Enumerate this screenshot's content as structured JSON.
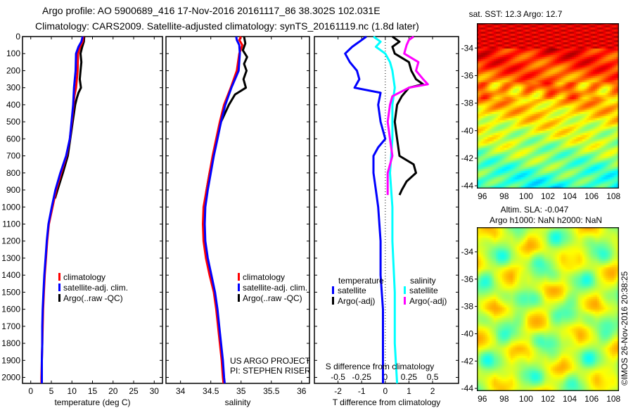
{
  "title": {
    "line1": "Argo profile: AO 5900689_416 17-Nov-2016 20161117_86 38.302S 102.031E",
    "line2": "Climatology: CARS2009. Satellite-adjusted climatology: synTS_20161119.nc (1.8d later)"
  },
  "colors": {
    "climatology": "#ff0000",
    "satellite": "#0000ff",
    "argo": "#000000",
    "salinity_satellite": "#00ffff",
    "salinity_argo": "#ff00ff"
  },
  "project": {
    "line1": "US ARGO PROJECT",
    "line2": "PI: STEPHEN RISER"
  },
  "copyright": "©IMOS 26-Nov-2016 20:38:25",
  "chart_data": [
    {
      "type": "line",
      "title": "",
      "xlabel": "temperature (deg C)",
      "ylabel": "",
      "xlim": [
        -2,
        32
      ],
      "ylim": [
        2035,
        0
      ],
      "xticks": [
        "0",
        "5",
        "10",
        "15",
        "20",
        "25",
        "30"
      ],
      "yticks": [
        "0",
        "100",
        "200",
        "300",
        "400",
        "500",
        "600",
        "700",
        "800",
        "900",
        "1000",
        "1100",
        "1200",
        "1300",
        "1400",
        "1500",
        "1600",
        "1700",
        "1800",
        "1900",
        "2000"
      ],
      "legend": [
        "climatology",
        "satellite-adj. clim.",
        "Argo(..raw -QC)"
      ],
      "legend_placement": "lower-center",
      "series": [
        {
          "name": "climatology",
          "depth": [
            0,
            30,
            60,
            100,
            200,
            300,
            350,
            400,
            500,
            600,
            700,
            800,
            900,
            1000,
            1100,
            1200,
            1300,
            1400,
            1500,
            1600,
            1700,
            1800,
            1900,
            2000,
            2035
          ],
          "values": [
            12.8,
            12.6,
            12.0,
            11.5,
            11.4,
            11.0,
            10.6,
            10.4,
            10.0,
            9.5,
            8.7,
            7.4,
            6.2,
            5.3,
            4.4,
            4.0,
            3.7,
            3.4,
            3.2,
            3.0,
            2.9,
            2.8,
            2.7,
            2.6,
            2.6
          ]
        },
        {
          "name": "satellite-adj. clim.",
          "depth": [
            0,
            30,
            60,
            100,
            200,
            300,
            350,
            400,
            500,
            600,
            700,
            800,
            900,
            1000,
            1100,
            1200,
            1300,
            1400,
            1500,
            1600,
            1700,
            1800,
            1900,
            2000,
            2035
          ],
          "values": [
            12.6,
            12.3,
            11.6,
            11.0,
            10.9,
            10.5,
            10.4,
            10.3,
            9.9,
            9.5,
            8.6,
            7.2,
            6.0,
            5.1,
            4.3,
            3.9,
            3.6,
            3.3,
            3.1,
            2.9,
            2.8,
            2.8,
            2.7,
            2.7,
            2.7
          ]
        },
        {
          "name": "Argo(..raw -QC)",
          "depth": [
            0,
            30,
            60,
            100,
            150,
            200,
            250,
            300,
            330,
            360,
            400,
            500,
            600,
            700,
            800,
            900,
            950
          ],
          "values": [
            13.0,
            12.9,
            12.5,
            12.1,
            12.3,
            12.1,
            11.9,
            12.2,
            11.6,
            11.2,
            10.8,
            10.2,
            9.6,
            9.0,
            7.8,
            6.5,
            5.9
          ]
        }
      ]
    },
    {
      "type": "line",
      "xlabel": "salinity",
      "xlim": [
        33.76,
        36.13
      ],
      "ylim": [
        2035,
        0
      ],
      "xticks": [
        "34",
        "34.5",
        "35",
        "35.5",
        "36"
      ],
      "legend": [
        "climatology",
        "satellite-adj. clim.",
        "Argo(..raw -QC)"
      ],
      "legend_placement": "lower-right",
      "series": [
        {
          "name": "climatology",
          "depth": [
            0,
            20,
            50,
            100,
            200,
            300,
            400,
            500,
            600,
            700,
            800,
            900,
            1000,
            1100,
            1200,
            1300,
            1400,
            1500,
            1600,
            1700,
            1800,
            1900,
            2000,
            2035
          ],
          "values": [
            35.0,
            34.97,
            35.02,
            34.97,
            34.93,
            34.83,
            34.72,
            34.65,
            34.59,
            34.53,
            34.48,
            34.43,
            34.38,
            34.37,
            34.38,
            34.42,
            34.48,
            34.55,
            34.59,
            34.62,
            34.65,
            34.68,
            34.7,
            34.71
          ]
        },
        {
          "name": "satellite-adj. clim.",
          "depth": [
            0,
            20,
            50,
            100,
            200,
            300,
            400,
            500,
            600,
            700,
            800,
            900,
            1000,
            1100,
            1200,
            1300,
            1400,
            1500,
            1600,
            1700,
            1800,
            1900,
            2000,
            2035
          ],
          "values": [
            34.92,
            34.93,
            34.97,
            34.98,
            34.96,
            34.84,
            34.74,
            34.67,
            34.61,
            34.55,
            34.5,
            34.45,
            34.41,
            34.4,
            34.41,
            34.45,
            34.51,
            34.57,
            34.61,
            34.64,
            34.67,
            34.7,
            34.72,
            34.73
          ]
        },
        {
          "name": "Argo(..raw -QC)",
          "depth": [
            0,
            40,
            80,
            120,
            160,
            200,
            250,
            300,
            340,
            400,
            500,
            600,
            700,
            800,
            900,
            1000
          ],
          "values": [
            35.05,
            35.07,
            35.03,
            35.1,
            35.05,
            35.09,
            35.04,
            35.08,
            34.9,
            34.8,
            34.67,
            34.6,
            34.54,
            34.48,
            34.43,
            34.39
          ]
        }
      ]
    },
    {
      "type": "line",
      "xlabel": "T difference from climatology",
      "xlabel2": "S difference from climatology",
      "xlim": [
        -3,
        3.1
      ],
      "ylim": [
        2035,
        0
      ],
      "xticks": [
        "-2",
        "-1",
        "0",
        "1",
        "2"
      ],
      "xticks_s": [
        "-0.5",
        "-0.25",
        "0",
        "0.25",
        "0.5"
      ],
      "legend_headers": {
        "temperature": "temperature",
        "salinity": "salinity"
      },
      "legend": [
        "satellite",
        "Argo(-adj)",
        "satellite",
        "Argo(-adj)"
      ],
      "series": [
        {
          "name": "temperature satellite",
          "depth": [
            0,
            30,
            60,
            100,
            150,
            200,
            250,
            300,
            330,
            400,
            500,
            600,
            650,
            700,
            800,
            900,
            1000,
            1200,
            1400,
            1600,
            2035
          ],
          "values": [
            -0.8,
            -1.1,
            -1.4,
            -1.7,
            -1.5,
            -1.2,
            -1.1,
            -1.3,
            -0.2,
            -0.3,
            -0.2,
            0,
            -0.3,
            -0.5,
            -0.5,
            -0.4,
            -0.3,
            -0.2,
            -0.2,
            -0.1,
            -0.1
          ]
        },
        {
          "name": "temperature Argo(-adj)",
          "depth": [
            0,
            30,
            60,
            100,
            150,
            200,
            250,
            280,
            300,
            350,
            400,
            500,
            600,
            700,
            750,
            800,
            850,
            900,
            930
          ],
          "values": [
            0.3,
            0.6,
            0.3,
            0.4,
            1.0,
            1.1,
            1.3,
            1.6,
            1.0,
            0.7,
            0.5,
            0.4,
            0.5,
            0.6,
            1.2,
            1.3,
            0.9,
            0.7,
            0.6
          ]
        },
        {
          "name": "salinity satellite (S x4)",
          "depth": [
            0,
            30,
            60,
            100,
            150,
            200,
            300,
            400,
            500,
            600,
            800,
            1000,
            1200,
            1500,
            1800,
            2035
          ],
          "values": [
            -0.5,
            -0.2,
            -0.4,
            0,
            0.2,
            0.3,
            0.4,
            0.3,
            0.3,
            0.3,
            0.2,
            0.3,
            0.3,
            0.4,
            0.4,
            0.5
          ]
        },
        {
          "name": "salinity Argo(-adj) (S x4)",
          "depth": [
            0,
            20,
            50,
            100,
            150,
            200,
            250,
            280,
            300,
            350,
            400,
            500,
            600,
            700,
            800,
            900,
            930
          ],
          "values": [
            1.2,
            1.0,
            0.9,
            0.8,
            1.4,
            1.3,
            1.6,
            1.8,
            1.0,
            0.3,
            0.2,
            0.1,
            0.2,
            0.3,
            0.1,
            0.1,
            0.1
          ]
        }
      ]
    },
    {
      "type": "heatmap",
      "title": "sat. SST: 12.3 Argo: 12.7",
      "xticks": [
        "96",
        "98",
        "100",
        "102",
        "104",
        "106",
        "108"
      ],
      "yticks": [
        "-34",
        "-36",
        "-38",
        "-40",
        "-42",
        "-44"
      ],
      "xlim": [
        95.5,
        108.5
      ],
      "ylim": [
        -44.2,
        -32.2
      ]
    },
    {
      "type": "heatmap",
      "title": "Altim. SLA: -0.047",
      "title2": "Argo h1000: NaN h2000: NaN",
      "xticks": [
        "96",
        "98",
        "100",
        "102",
        "104",
        "106",
        "108"
      ],
      "yticks": [
        "-34",
        "-36",
        "-38",
        "-40",
        "-42",
        "-44"
      ],
      "xlim": [
        95.5,
        108.5
      ],
      "ylim": [
        -44.2,
        -32.2
      ]
    }
  ]
}
